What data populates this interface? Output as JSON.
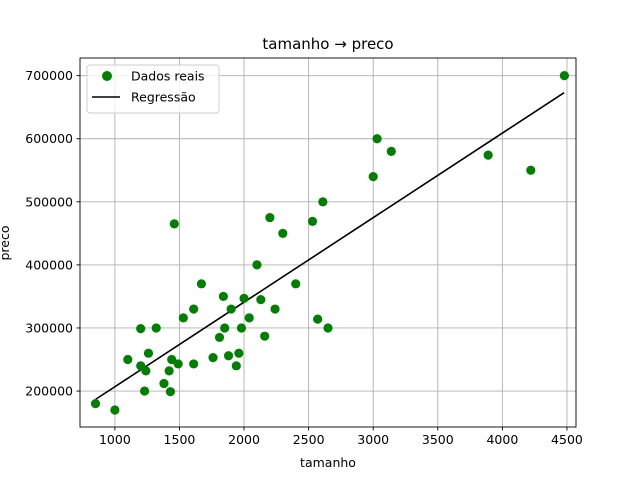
{
  "chart_data": {
    "type": "scatter",
    "title": "tamanho → preco",
    "xlabel": "tamanho",
    "ylabel": "preco",
    "xlim": [
      730,
      4570
    ],
    "ylim": [
      143000,
      728000
    ],
    "xticks": [
      1000,
      1500,
      2000,
      2500,
      3000,
      3500,
      4000,
      4500
    ],
    "yticks": [
      200000,
      300000,
      400000,
      500000,
      600000,
      700000
    ],
    "xtick_labels": [
      "1000",
      "1500",
      "2000",
      "2500",
      "3000",
      "3500",
      "4000",
      "4500"
    ],
    "ytick_labels": [
      "200000",
      "300000",
      "400000",
      "500000",
      "600000",
      "700000"
    ],
    "grid": true,
    "legend_position": "top-left",
    "series": [
      {
        "name": "Dados reais",
        "kind": "scatter",
        "color": "#008000",
        "points": [
          [
            850,
            180000
          ],
          [
            1000,
            170000
          ],
          [
            1100,
            250000
          ],
          [
            1200,
            240000
          ],
          [
            1200,
            299000
          ],
          [
            1230,
            200000
          ],
          [
            1240,
            232000
          ],
          [
            1260,
            260000
          ],
          [
            1320,
            300000
          ],
          [
            1380,
            212000
          ],
          [
            1420,
            232000
          ],
          [
            1430,
            199000
          ],
          [
            1440,
            250000
          ],
          [
            1460,
            465000
          ],
          [
            1490,
            243000
          ],
          [
            1530,
            316000
          ],
          [
            1610,
            330000
          ],
          [
            1610,
            243000
          ],
          [
            1670,
            370000
          ],
          [
            1760,
            253000
          ],
          [
            1810,
            285000
          ],
          [
            1840,
            350000
          ],
          [
            1850,
            300000
          ],
          [
            1880,
            256000
          ],
          [
            1900,
            330000
          ],
          [
            1940,
            240000
          ],
          [
            1960,
            260000
          ],
          [
            1980,
            300000
          ],
          [
            2000,
            347000
          ],
          [
            2040,
            316000
          ],
          [
            2100,
            400000
          ],
          [
            2130,
            345000
          ],
          [
            2160,
            287000
          ],
          [
            2200,
            475000
          ],
          [
            2240,
            330000
          ],
          [
            2300,
            450000
          ],
          [
            2400,
            370000
          ],
          [
            2530,
            469000
          ],
          [
            2570,
            314000
          ],
          [
            2610,
            500000
          ],
          [
            2650,
            300000
          ],
          [
            3000,
            540000
          ],
          [
            3030,
            600000
          ],
          [
            3140,
            580000
          ],
          [
            3890,
            574000
          ],
          [
            4220,
            550000
          ],
          [
            4480,
            700000
          ]
        ]
      },
      {
        "name": "Regressão",
        "kind": "line",
        "color": "#000000",
        "points": [
          [
            852,
            187000
          ],
          [
            4478,
            673000
          ]
        ]
      }
    ]
  }
}
